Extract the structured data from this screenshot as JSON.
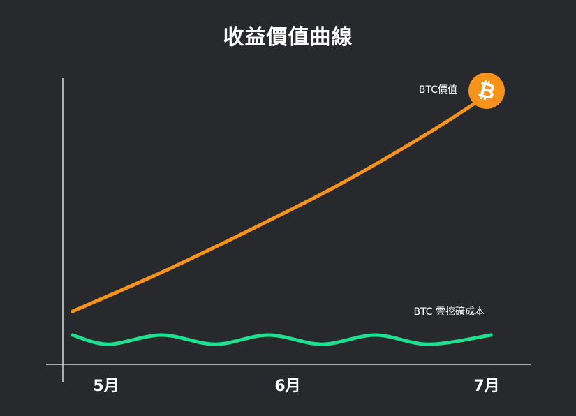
{
  "colors": {
    "background": "#28292c",
    "axis": "#d8d8d8",
    "btc_value": "#f7931a",
    "mining_cost": "#1ee08f",
    "text": "#ffffff"
  },
  "chart_data": {
    "type": "line",
    "title": "收益價值曲線",
    "categories": [
      "5月",
      "6月",
      "7月"
    ],
    "grid": false,
    "series": [
      {
        "name": "BTC價值",
        "color": "#f7931a",
        "end_icon": "bitcoin-icon",
        "points": [
          [
            0,
            5
          ],
          [
            0.5,
            36
          ],
          [
            1.0,
            70
          ],
          [
            1.5,
            106
          ],
          [
            2.0,
            147
          ],
          [
            2.35,
            179
          ]
        ]
      },
      {
        "name": "BTC 雲挖礦成本",
        "color": "#1ee08f",
        "points": [
          [
            0,
            0
          ],
          [
            0.2,
            -6
          ],
          [
            0.5,
            0
          ],
          [
            0.8,
            -6
          ],
          [
            1.1,
            0
          ],
          [
            1.4,
            -6
          ],
          [
            1.7,
            0
          ],
          [
            2.0,
            -6
          ],
          [
            2.35,
            0
          ]
        ]
      }
    ]
  }
}
